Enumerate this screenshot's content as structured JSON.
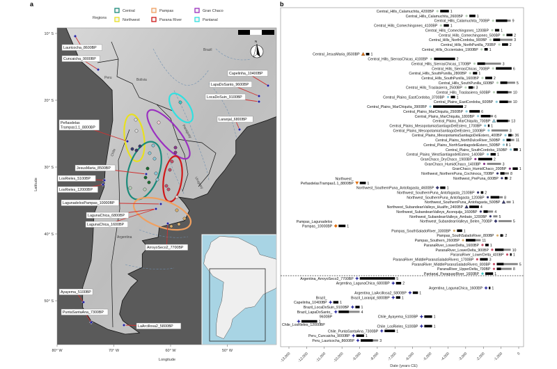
{
  "panel_a": {
    "panel_letter": "a",
    "legend": {
      "title": "Regions",
      "items": [
        {
          "label": "Central",
          "color": "#1a8a7a"
        },
        {
          "label": "Pampas",
          "color": "#f0a060"
        },
        {
          "label": "Gran Chaco",
          "color": "#9a30c0"
        },
        {
          "label": "Northwest",
          "color": "#e8e020"
        },
        {
          "label": "Parana River",
          "color": "#d01818"
        },
        {
          "label": "Pantanal",
          "color": "#30e0e0"
        }
      ]
    },
    "lat_ticks": [
      "10° S",
      "20° S",
      "30° S",
      "40° S",
      "50° S"
    ],
    "lon_ticks": [
      "80° W",
      "70° W",
      "60° W",
      "50° W"
    ],
    "ylabel": "Latitude",
    "xlabel": "Longitude",
    "countries": [
      "Peru",
      "Bolivia",
      "Brazil",
      "Paraguay",
      "Uruguay",
      "Argentina",
      "Chile"
    ],
    "site_labels": [
      "Lauricocha_8600BP",
      "Cuncaicha_9000BP",
      "Capelinha_10400BP",
      "LapaDoSanto_9600BP",
      "LocaDoSuin_9100BP",
      "Laranjal_6800BP",
      "Peñasdelas\nTrampas1.1_8800BP",
      "JesusMaria_8500BP",
      "LosRieles_5100BP",
      "LosRieles_12000BP",
      "LagunadelosPampas_10000BP",
      "LagunaChica_6800BP",
      "LagunaChica_1600BP",
      "ArroyoSeco2_7700BP",
      "Ayayema_5100BP",
      "PuntaSantaAna_7300BP",
      "LaArcillosa2_5800BP"
    ],
    "north_arrow": "N"
  },
  "panel_b": {
    "panel_letter": "b"
  },
  "chart_data": {
    "type": "range-bar",
    "xlabel": "Date (years CE)",
    "xlim": [
      -13000,
      0
    ],
    "x_ticks": [
      -13000,
      -12000,
      -11000,
      -10000,
      -9000,
      -8000,
      -7000,
      -6000,
      -5000,
      -4000,
      -3000,
      -2000,
      -1000,
      0
    ],
    "x_tick_labels": [
      "-13,000",
      "-12,000",
      "-11,000",
      "-10,000",
      "-9,000",
      "-8,000",
      "-7,000",
      "-6,000",
      "-5,000",
      "-4,000",
      "-3,000",
      "-2,000",
      "-1,000",
      "0"
    ],
    "colors": {
      "hills": "#b8d0b8",
      "plains": "#8cc8d8",
      "chaco": "#8a3a8a",
      "northwest": "#3a3a70",
      "pampas": "#d8b070",
      "parana": "#c8506a",
      "pantanal": "#40c8c8",
      "ancient": "#2a2aa0",
      "orange": "#e07010",
      "black_bar": "#000000",
      "grey_bar": "#8a8a8a"
    },
    "rows": [
      {
        "l": "Central_Hills_Calamuchita_4200BP",
        "d": -4600,
        "b": -3950,
        "g": null,
        "n": 1,
        "c": "hills",
        "s": "circle"
      },
      {
        "l": "Central_Hills_Calamuchita_2600BP",
        "d": -2950,
        "b": -2450,
        "g": null,
        "n": 1,
        "c": "hills",
        "s": "circle"
      },
      {
        "l": "Central_Hills_Calamuchita_700BP",
        "d": -1450,
        "b": -650,
        "g": -450,
        "n": 9,
        "c": "hills",
        "s": "circle"
      },
      {
        "l": "Central_Hills_Comechingones_4100BP",
        "d": -4400,
        "b": -3950,
        "g": null,
        "n": 1,
        "c": "hills",
        "s": "circle"
      },
      {
        "l": "Central_Hills_Comechingones_1200BP",
        "d": -1500,
        "b": -1100,
        "g": null,
        "n": 1,
        "c": "hills",
        "s": "circle"
      },
      {
        "l": "Central_Hills_Comechingones_500BP",
        "d": -850,
        "b": -350,
        "g": null,
        "n": 2,
        "c": "hills",
        "s": "circle"
      },
      {
        "l": "Central_Hills_NorthCordoba_900BP",
        "d": -1600,
        "b": -1050,
        "g": -350,
        "n": 3,
        "c": "hills",
        "s": "circle"
      },
      {
        "l": "Central_Hills_NorthPunilla_700BP",
        "d": -1100,
        "b": -600,
        "g": null,
        "n": 2,
        "c": "hills",
        "s": "circle"
      },
      {
        "l": "Central_Hills_Occientales_1900BP",
        "d": -2100,
        "b": -1750,
        "g": null,
        "n": 1,
        "c": "hills",
        "s": "circle"
      },
      {
        "l": "Central_JesusMaria_8500BP",
        "d": -8800,
        "b": -8450,
        "g": null,
        "n": 1,
        "c": "orange",
        "s": "triangle"
      },
      {
        "l": "Central_Hills_SierrasChicas_4100BP",
        "d": -4950,
        "b": -3600,
        "g": null,
        "n": 2,
        "c": "hills",
        "s": "circle"
      },
      {
        "l": "Central_Hills_SierrasChicas_1700BP",
        "d": -2500,
        "b": -1900,
        "g": -1000,
        "n": 3,
        "c": "hills",
        "s": "circle"
      },
      {
        "l": "Central_Hills_SierrasChicas_700BP",
        "d": -1450,
        "b": -400,
        "g": null,
        "n": 6,
        "c": "hills",
        "s": "circle"
      },
      {
        "l": "Central_Hills_SouthPunilla_2800BP",
        "d": -2750,
        "b": -2350,
        "g": null,
        "n": 1,
        "c": "hills",
        "s": "circle"
      },
      {
        "l": "Central_Hills_SouthPunilla_1600BP",
        "d": -2050,
        "b": -1500,
        "g": null,
        "n": 2,
        "c": "hills",
        "s": "circle"
      },
      {
        "l": "Central_Hills_SouthPunilla_600BP",
        "d": -1200,
        "b": -650,
        "g": -200,
        "n": 5,
        "c": "hills",
        "s": "circle"
      },
      {
        "l": "Central_Hills_Traslasierra_2500BP",
        "d": -3000,
        "b": -2600,
        "g": -2500,
        "n": 3,
        "c": "hills",
        "s": "circle"
      },
      {
        "l": "Central_Hills_Traslasierra_600BP",
        "d": -1400,
        "b": -600,
        "g": -400,
        "n": 10,
        "c": "hills",
        "s": "circle"
      },
      {
        "l": "Central_Plains_EastCordoba_3700BP",
        "d": -4000,
        "b": -3600,
        "g": null,
        "n": 1,
        "c": "plains",
        "s": "circle"
      },
      {
        "l": "Central_Plains_EastCordoba_600BP",
        "d": -1250,
        "b": -600,
        "g": -400,
        "n": 10,
        "c": "plains",
        "s": "circle"
      },
      {
        "l": "Central_Plains_MarChiquita_3900BP",
        "d": -5000,
        "b": -3150,
        "g": null,
        "n": 2,
        "c": "plains",
        "s": "circle"
      },
      {
        "l": "Central_Plains_MarChiquita_2500BP",
        "d": -2950,
        "b": -2200,
        "g": null,
        "n": 6,
        "c": "plains",
        "s": "circle"
      },
      {
        "l": "Central_Plains_MarChiquita_1800BP",
        "d": -2300,
        "b": -1600,
        "g": -1450,
        "n": 6,
        "c": "plains",
        "s": "circle"
      },
      {
        "l": "Central_Plains_MarChiquita_700BP",
        "d": -1400,
        "b": -600,
        "g": -500,
        "n": 13,
        "c": "plains",
        "s": "triangle"
      },
      {
        "l": "Central_Plains_MesopotamiaSantiagoDelEstero_1700BP",
        "d": -1900,
        "b": -1650,
        "g": null,
        "n": 1,
        "c": "plains",
        "s": "circle"
      },
      {
        "l": "Central_Plains_MesopotamiaSantiagoDelEstero_1000BP",
        "d": -1700,
        "b": null,
        "g": -600,
        "n": 3,
        "c": "plains",
        "s": "circle"
      },
      {
        "l": "Central_Plains_MesopotamiaSantiagoDelEstero_400BP",
        "d": -750,
        "b": -400,
        "g": -300,
        "n": 36,
        "c": "plains",
        "s": "circle"
      },
      {
        "l": "Central_Plains_NorthDulceRiver_500BP",
        "d": -850,
        "b": -450,
        "g": -250,
        "n": 11,
        "c": "plains",
        "s": "circle"
      },
      {
        "l": "Central_Plains_NorthSantiagodelEstero_500BP",
        "d": -850,
        "b": -650,
        "g": null,
        "n": 1,
        "c": "plains",
        "s": "circle"
      },
      {
        "l": "Central_Plains_SouthCordoba_150BP",
        "d": -450,
        "b": -50,
        "g": null,
        "n": 1,
        "c": "plains",
        "s": "circle"
      },
      {
        "l": "Central_Plains_WestSantiagodelEstero_1400BP",
        "d": -1750,
        "b": -1300,
        "g": null,
        "n": 1,
        "c": "plains",
        "s": "circle"
      },
      {
        "l": "GranChaco_DryChaco_1900BP",
        "d": -2450,
        "b": -1500,
        "g": null,
        "n": 2,
        "c": "chaco",
        "s": "circle"
      },
      {
        "l": "GranChaco_HumidChaco_1400BP",
        "d": -1950,
        "b": null,
        "g": -1000,
        "n": 3,
        "c": "chaco",
        "s": "circle"
      },
      {
        "l": "GranChaco_HumidChaco_200BP",
        "d": -500,
        "b": -50,
        "g": null,
        "n": 1,
        "c": "chaco",
        "s": "circle"
      },
      {
        "l": "Northwest_NorthernPuna_Cochinoca_700BP",
        "d": -1200,
        "b": -800,
        "g": -550,
        "n": 8,
        "c": "northwest",
        "s": "circle"
      },
      {
        "l": "Northwest_PrePuna_600BP",
        "d": -950,
        "b": -650,
        "g": -600,
        "n": 2,
        "c": "northwest",
        "s": "circle"
      },
      {
        "l": "Northwest_\nPeñasdelasTrampas1.1_8800BP",
        "d": -9150,
        "b": -8650,
        "g": null,
        "n": 1,
        "c": "orange",
        "s": "triangle-down"
      },
      {
        "l": "Northwest_SouthernPuna_Antofagasta_4600BP",
        "d": -4600,
        "b": -4150,
        "g": null,
        "n": 1,
        "c": "northwest",
        "s": "diamond"
      },
      {
        "l": "Northwest_SouthernPuna_Antofagasta_2100BP",
        "d": -2300,
        "b": -2000,
        "g": null,
        "n": 2,
        "c": "northwest",
        "s": "circle"
      },
      {
        "l": "Northwest_SouthernPuna_Antofagasta_1200BP",
        "d": -1750,
        "b": -1100,
        "g": -900,
        "n": 8,
        "c": "northwest",
        "s": "circle"
      },
      {
        "l": "Northwest_SouthernPuna_Antofagasta_500BP",
        "d": -850,
        "b": null,
        "g": -450,
        "n": 1,
        "c": "northwest",
        "s": "triangle"
      },
      {
        "l": "Northwest_SubandeanValleys_Hualfin_2400BP",
        "d": -2950,
        "b": -2250,
        "g": null,
        "n": 4,
        "c": "northwest",
        "s": "triangle"
      },
      {
        "l": "Northwest_SubandeanValleys_Aconquija_1600BP",
        "d": -2150,
        "b": -1750,
        "g": -1450,
        "n": 4,
        "c": "northwest",
        "s": "circle"
      },
      {
        "l": "Northwest_SubandeanValleys_Ambato_1200BP",
        "d": -1600,
        "b": null,
        "g": -1200,
        "n": 5,
        "c": "northwest",
        "s": "circle"
      },
      {
        "l": "Northwest_SubandeanValleys_Belen_700BP",
        "d": -1300,
        "b": null,
        "g": -400,
        "n": 5,
        "c": "northwest",
        "s": "diamond"
      },
      {
        "l": "Pampas_Lagunadelos\nPampas_10000BP",
        "d": -10350,
        "b": -9800,
        "g": null,
        "n": 1,
        "c": "orange",
        "s": "diamond"
      },
      {
        "l": "Pampas_SouthSaladoRiver_3300BP",
        "d": -3650,
        "b": -3200,
        "g": null,
        "n": 1,
        "c": "pampas",
        "s": "circle"
      },
      {
        "l": "Pampas_SouthSaladoRiver_800BP",
        "d": -1200,
        "b": -900,
        "g": -850,
        "n": 2,
        "c": "pampas",
        "s": "circle"
      },
      {
        "l": "Pampas_Southern_2600BP",
        "d": -3150,
        "b": -2450,
        "g": -2150,
        "n": 11,
        "c": "pampas",
        "s": "circle"
      },
      {
        "l": "ParanaRiver_LowerDelta_1600BP",
        "d": -2050,
        "b": -1700,
        "g": null,
        "n": 1,
        "c": "parana",
        "s": "circle"
      },
      {
        "l": "ParanaRiver_LowerDelta_900BP",
        "d": -1500,
        "b": -850,
        "g": -450,
        "n": 10,
        "c": "parana",
        "s": "circle"
      },
      {
        "l": "ParanaRiver_LowerDelta_400BP",
        "d": -650,
        "b": -400,
        "g": null,
        "n": 1,
        "c": "parana",
        "s": "circle"
      },
      {
        "l": "ParanaRiver_MiddleParanaSaladoRivers_1700BP",
        "d": -2350,
        "b": -1750,
        "g": null,
        "n": 3,
        "c": "parana",
        "s": "circle"
      },
      {
        "l": "ParanaRiver_MiddleParanaSaladoRivers_800BP",
        "d": -1400,
        "b": -850,
        "g": -50,
        "n": 5,
        "c": "parana",
        "s": "circle"
      },
      {
        "l": "ParanaRiver_UpperDelta_700BP",
        "d": -1400,
        "b": -1000,
        "g": -400,
        "n": 8,
        "c": "parana",
        "s": "circle"
      },
      {
        "l": "Pantanal_ParaguayRiver_1600BP",
        "d": -2050,
        "b": -1450,
        "g": null,
        "n": 1,
        "c": "pantanal",
        "s": "circle"
      },
      {
        "l": "Argentina_ArroyoSeco2_7700BP",
        "d": -9150,
        "b": -7000,
        "g": null,
        "n": 5,
        "c": "ancient",
        "s": "star"
      },
      {
        "l": "Argentina_LagunaChica_6800BP",
        "d": -7100,
        "b": -6650,
        "g": null,
        "n": 2,
        "c": "ancient",
        "s": "star"
      },
      {
        "l": "Argentina_LagunaChica_1600BP",
        "d": -1850,
        "b": -1600,
        "g": null,
        "n": 1,
        "c": "ancient",
        "s": "star"
      },
      {
        "l": "Argentina_LaArcillosa2_5800BP",
        "d": -6150,
        "b": -5700,
        "g": null,
        "n": 1,
        "c": "ancient",
        "s": "star"
      },
      {
        "l": "Brazil_Laranjal_6800BP",
        "d": -7100,
        "b": -6700,
        "g": null,
        "n": 1,
        "c": "ancient",
        "s": "star"
      },
      {
        "l": "Brazil_\nCapelinha_10400BP",
        "d": -10650,
        "b": -10200,
        "g": null,
        "n": 1,
        "c": "ancient",
        "s": "star"
      },
      {
        "l": "Brazil_LocaDoSuin_9100BP",
        "d": -9400,
        "b": -9000,
        "g": null,
        "n": 1,
        "c": "ancient",
        "s": "star"
      },
      {
        "l": "Brazil_LapaDoSanto_\n9600BP",
        "d": -10350,
        "b": -9600,
        "g": -9000,
        "n": 4,
        "c": "ancient",
        "s": "star",
        "below": true
      },
      {
        "l": "Chile_Ayayema_5100BP",
        "d": -5500,
        "b": -4900,
        "g": null,
        "n": 1,
        "c": "ancient",
        "s": "star"
      },
      {
        "l": "Chile_LosRieles_12000BP",
        "d": -12450,
        "b": -11400,
        "g": null,
        "n": 1,
        "c": "ancient",
        "s": "star",
        "under": true
      },
      {
        "l": "Chile_LosRieles_5100BP",
        "d": -5500,
        "b": -4900,
        "g": null,
        "n": 1,
        "c": "ancient",
        "s": "star"
      },
      {
        "l": "Chile_PuntaSantaAna_7300BP",
        "d": -7750,
        "b": -7000,
        "g": null,
        "n": 1,
        "c": "ancient",
        "s": "star"
      },
      {
        "l": "Peru_Cuncaicha_9000BP",
        "d": -9350,
        "b": -8750,
        "g": null,
        "n": 1,
        "c": "ancient",
        "s": "star"
      },
      {
        "l": "Peru_Lauricocha_8600BP",
        "d": -9100,
        "b": -8250,
        "g": -7950,
        "n": 3,
        "c": "ancient",
        "s": "star"
      }
    ]
  }
}
